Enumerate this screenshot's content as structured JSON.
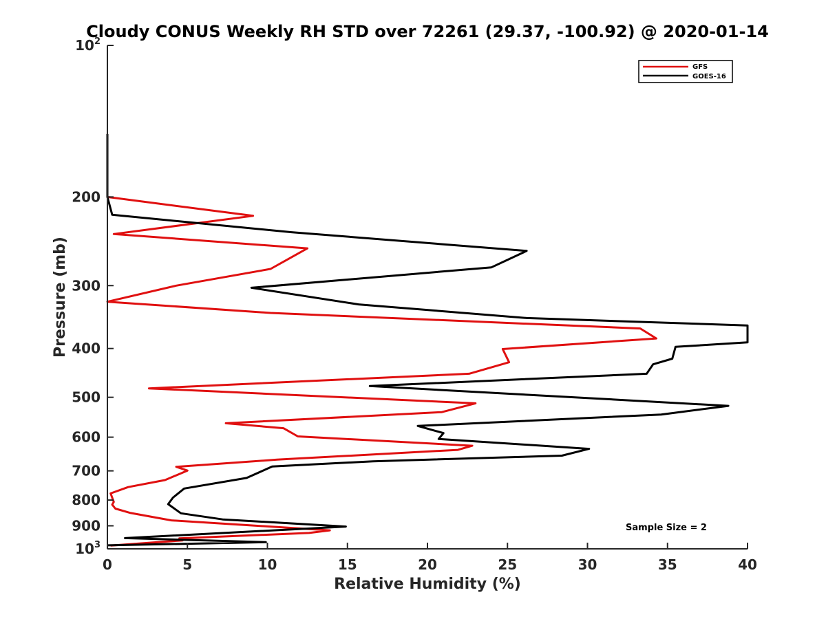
{
  "chart_data": {
    "type": "line",
    "title": "Cloudy CONUS Weekly RH STD over 72261 (29.37, -100.92) @ 2020-01-14",
    "xlabel": "Relative Humidity (%)",
    "ylabel": "Pressure (mb)",
    "xlim": [
      0,
      40
    ],
    "ylim": [
      100,
      1000
    ],
    "y_scale": "log",
    "y_reversed": true,
    "x_ticks": [
      "0",
      "5",
      "10",
      "15",
      "20",
      "25",
      "30",
      "35",
      "40"
    ],
    "y_ticks": [
      {
        "value": 100,
        "base": "10",
        "exp": "2"
      },
      {
        "value": 200,
        "label": "200"
      },
      {
        "value": 300,
        "label": "300"
      },
      {
        "value": 400,
        "label": "400"
      },
      {
        "value": 500,
        "label": "500"
      },
      {
        "value": 600,
        "label": "600"
      },
      {
        "value": 700,
        "label": "700"
      },
      {
        "value": 800,
        "label": "800"
      },
      {
        "value": 900,
        "label": "900"
      },
      {
        "value": 1000,
        "base": "10",
        "exp": "3"
      }
    ],
    "legend_position": "top-right",
    "grid": false,
    "annotation": "Sample Size = 2",
    "series": [
      {
        "name": "GFS",
        "color": "#e01010",
        "points": [
          [
            0,
            150
          ],
          [
            0,
            200
          ],
          [
            9.1,
            218
          ],
          [
            0.4,
            237
          ],
          [
            12.5,
            253
          ],
          [
            10.2,
            278
          ],
          [
            4.3,
            300
          ],
          [
            0,
            323
          ],
          [
            10.2,
            340
          ],
          [
            33.3,
            365
          ],
          [
            34.3,
            382
          ],
          [
            24.7,
            401
          ],
          [
            25.1,
            426
          ],
          [
            22.6,
            449
          ],
          [
            2.6,
            480
          ],
          [
            23.0,
            514
          ],
          [
            20.9,
            535
          ],
          [
            7.4,
            563
          ],
          [
            11.0,
            576
          ],
          [
            11.9,
            598
          ],
          [
            22.8,
            624
          ],
          [
            21.9,
            636
          ],
          [
            10.6,
            665
          ],
          [
            4.3,
            687
          ],
          [
            5.0,
            699
          ],
          [
            3.6,
            730
          ],
          [
            1.3,
            754
          ],
          [
            0.2,
            776
          ],
          [
            0.4,
            807
          ],
          [
            0.3,
            817
          ],
          [
            0.5,
            832
          ],
          [
            1.4,
            848
          ],
          [
            4.0,
            878
          ],
          [
            13.9,
            919
          ],
          [
            12.6,
            930
          ],
          [
            4.5,
            953
          ],
          [
            4.7,
            962
          ],
          [
            0.2,
            985
          ]
        ]
      },
      {
        "name": "GOES-16",
        "color": "#000000",
        "points": [
          [
            0,
            150
          ],
          [
            0,
            200
          ],
          [
            0.3,
            217
          ],
          [
            11.5,
            235
          ],
          [
            26.2,
            256
          ],
          [
            24.0,
            276
          ],
          [
            9.0,
            303
          ],
          [
            15.7,
            327
          ],
          [
            26.2,
            348
          ],
          [
            40.0,
            360
          ],
          [
            40.0,
            389
          ],
          [
            35.5,
            397
          ],
          [
            35.3,
            419
          ],
          [
            34.1,
            430
          ],
          [
            33.7,
            449
          ],
          [
            16.4,
            475
          ],
          [
            38.8,
            520
          ],
          [
            34.6,
            541
          ],
          [
            19.4,
            570
          ],
          [
            21.0,
            589
          ],
          [
            20.7,
            605
          ],
          [
            30.1,
            633
          ],
          [
            28.4,
            653
          ],
          [
            16.6,
            670
          ],
          [
            10.3,
            686
          ],
          [
            10.0,
            693
          ],
          [
            8.7,
            723
          ],
          [
            4.8,
            759
          ],
          [
            4.1,
            791
          ],
          [
            3.8,
            815
          ],
          [
            4.6,
            850
          ],
          [
            7.2,
            874
          ],
          [
            14.9,
            903
          ],
          [
            1.1,
            952
          ],
          [
            9.9,
            970
          ],
          [
            0,
            984
          ]
        ]
      }
    ]
  }
}
